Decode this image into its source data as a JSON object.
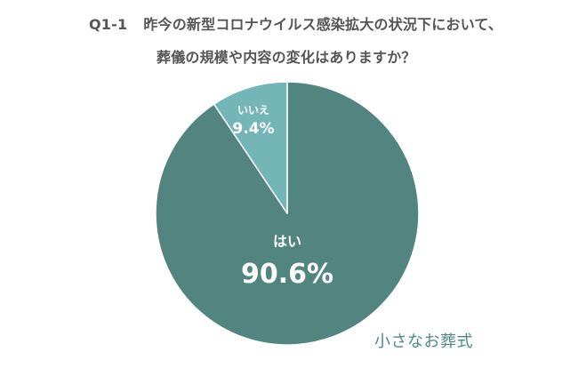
{
  "title": {
    "question_id": "Q1-1",
    "line1": "昨今の新型コロナウイルス感染拡大の状況下において、",
    "line2": "葬儀の規模や内容の変化はありますか？"
  },
  "brand": {
    "text": "小さなお葬式"
  },
  "chart_data": {
    "type": "pie",
    "title": "Q1-1　昨今の新型コロナウイルス感染拡大の状況下において、葬儀の規模や内容の変化はありますか？",
    "slices": [
      {
        "label": "はい",
        "value": 90.6,
        "display": "90.6%",
        "color": "#538580"
      },
      {
        "label": "いいえ",
        "value": 9.4,
        "display": "9.4%",
        "color": "#74b5b8"
      }
    ],
    "start": "12 o'clock",
    "direction": "clockwise"
  }
}
